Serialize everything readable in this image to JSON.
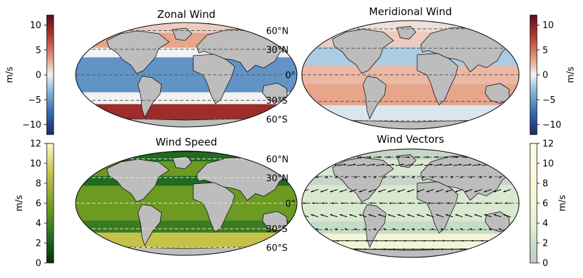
{
  "chart_data": [
    {
      "type": "heatmap",
      "title": "Zonal Wind",
      "lat_labels": [
        "60°N",
        "30°N",
        "0°",
        "30°S",
        "60°S"
      ],
      "colorbar": {
        "label": "m/s",
        "range": [
          -12,
          12
        ],
        "ticks": [
          10,
          5,
          0,
          -5,
          -10
        ],
        "tick_labels": [
          "10",
          "5",
          "0",
          "−5",
          "−10"
        ],
        "colors": [
          "#1c2a6e",
          "#2f66ad",
          "#93bfdc",
          "#f2f2f2",
          "#e7a58b",
          "#b0382e",
          "#5e0d1c"
        ],
        "side": "left"
      },
      "bands": [
        {
          "lat_top": 90,
          "lat_bottom": 55,
          "value": 2
        },
        {
          "lat_top": 55,
          "lat_bottom": 32,
          "value": 4
        },
        {
          "lat_top": 32,
          "lat_bottom": 20,
          "value": 0
        },
        {
          "lat_top": 20,
          "lat_bottom": -20,
          "value": -6
        },
        {
          "lat_top": -20,
          "lat_bottom": -35,
          "value": 0
        },
        {
          "lat_top": -35,
          "lat_bottom": -62,
          "value": 9
        },
        {
          "lat_top": -62,
          "lat_bottom": -90,
          "value": -3
        }
      ]
    },
    {
      "type": "heatmap",
      "title": "Meridional Wind",
      "lat_labels": [
        "60°N",
        "30°N",
        "0°",
        "30°S",
        "60°S"
      ],
      "colorbar": {
        "label": "m/s",
        "range": [
          -12,
          12
        ],
        "ticks": [
          10,
          5,
          0,
          -5,
          -10
        ],
        "tick_labels": [
          "10",
          "5",
          "0",
          "−5",
          "−10"
        ],
        "colors": [
          "#1c2a6e",
          "#2f66ad",
          "#93bfdc",
          "#f2f2f2",
          "#e7a58b",
          "#b0382e",
          "#5e0d1c"
        ],
        "side": "right"
      },
      "bands": [
        {
          "lat_top": 90,
          "lat_bottom": 55,
          "value": 1
        },
        {
          "lat_top": 55,
          "lat_bottom": 32,
          "value": 2
        },
        {
          "lat_top": 32,
          "lat_bottom": 10,
          "value": -3
        },
        {
          "lat_top": 10,
          "lat_bottom": -10,
          "value": 3
        },
        {
          "lat_top": -10,
          "lat_bottom": -35,
          "value": 4
        },
        {
          "lat_top": -35,
          "lat_bottom": -62,
          "value": -1
        },
        {
          "lat_top": -62,
          "lat_bottom": -90,
          "value": 1
        }
      ]
    },
    {
      "type": "heatmap",
      "title": "Wind Speed",
      "lat_labels": [
        "60°N",
        "30°N",
        "0°",
        "30°S",
        "60°S"
      ],
      "colorbar": {
        "label": "m/s",
        "range": [
          0,
          12
        ],
        "ticks": [
          12,
          10,
          8,
          6,
          4,
          2,
          0
        ],
        "tick_labels": [
          "12",
          "10",
          "8",
          "6",
          "4",
          "2",
          "0"
        ],
        "colors": [
          "#0d2a12",
          "#1f6b22",
          "#6c9a22",
          "#c5c24a",
          "#f5f0b0"
        ],
        "side": "left"
      },
      "bands": [
        {
          "lat_top": 90,
          "lat_bottom": 55,
          "value": 3
        },
        {
          "lat_top": 55,
          "lat_bottom": 32,
          "value": 6
        },
        {
          "lat_top": 32,
          "lat_bottom": 20,
          "value": 3
        },
        {
          "lat_top": 20,
          "lat_bottom": -20,
          "value": 6
        },
        {
          "lat_top": -20,
          "lat_bottom": -35,
          "value": 4
        },
        {
          "lat_top": -35,
          "lat_bottom": -62,
          "value": 9
        },
        {
          "lat_top": -62,
          "lat_bottom": -90,
          "value": 3
        }
      ]
    },
    {
      "type": "heatmap",
      "title": "Wind Vectors",
      "colorbar": {
        "label": "m/s",
        "range": [
          0,
          12
        ],
        "ticks": [
          12,
          10,
          8,
          6,
          4,
          2,
          0
        ],
        "tick_labels": [
          "12",
          "10",
          "8",
          "6",
          "4",
          "2",
          "0"
        ],
        "colors": [
          "#c9c9c9",
          "#c5dcc7",
          "#e3efd5",
          "#fbf8d6",
          "#ffffe5"
        ],
        "side": "right"
      },
      "bands": [
        {
          "lat_top": 90,
          "lat_bottom": 55,
          "value": 2
        },
        {
          "lat_top": 55,
          "lat_bottom": 32,
          "value": 5
        },
        {
          "lat_top": 32,
          "lat_bottom": 20,
          "value": 2
        },
        {
          "lat_top": 20,
          "lat_bottom": -20,
          "value": 5
        },
        {
          "lat_top": -20,
          "lat_bottom": -35,
          "value": 3
        },
        {
          "lat_top": -35,
          "lat_bottom": -62,
          "value": 8
        },
        {
          "lat_top": -62,
          "lat_bottom": -90,
          "value": 2
        }
      ],
      "vectors": {
        "rows": [
          {
            "lat": 60,
            "u": 4,
            "v": 0
          },
          {
            "lat": 45,
            "u": 7,
            "v": 1
          },
          {
            "lat": 30,
            "u": -2,
            "v": -1
          },
          {
            "lat": 15,
            "u": -6,
            "v": -2
          },
          {
            "lat": 0,
            "u": -5,
            "v": 0
          },
          {
            "lat": -15,
            "u": -6,
            "v": 2
          },
          {
            "lat": -30,
            "u": -2,
            "v": 1
          },
          {
            "lat": -45,
            "u": 9,
            "v": 0
          },
          {
            "lat": -60,
            "u": 8,
            "v": 0
          }
        ]
      }
    }
  ]
}
